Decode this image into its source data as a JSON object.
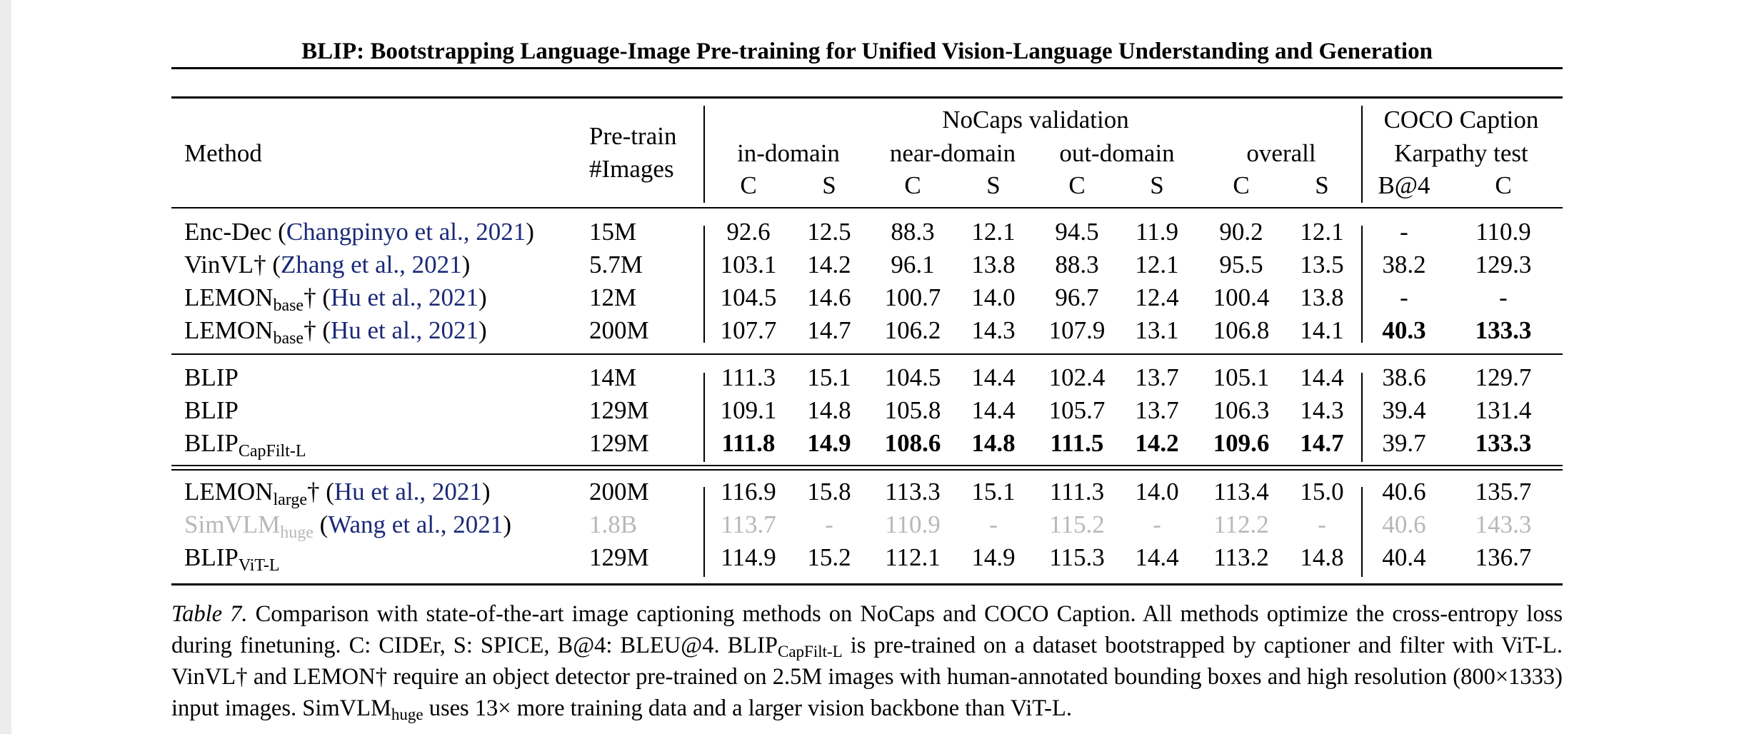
{
  "page_header": "BLIP: Bootstrapping Language-Image Pre-training for Unified Vision-Language Understanding and Generation",
  "table": {
    "header": {
      "method": "Method",
      "pretrain_line1": "Pre-train",
      "pretrain_line2": "#Images",
      "nocaps": "NoCaps validation",
      "coco_line1": "COCO Caption",
      "coco_line2": "Karpathy test",
      "groups": [
        "in-domain",
        "near-domain",
        "out-domain",
        "overall"
      ],
      "sub_c": "C",
      "sub_s": "S",
      "sub_b4": "B@4"
    },
    "rows": [
      {
        "m_main": "Enc-Dec (",
        "m_sub": "",
        "m_dagger": "",
        "m_cite": "Changpinyo et al., 2021",
        "m_close": ")",
        "pretrain": "15M",
        "vals": [
          "92.6",
          "12.5",
          "88.3",
          "12.1",
          "94.5",
          "11.9",
          "90.2",
          "12.1",
          "-",
          "110.9"
        ]
      },
      {
        "m_main": "VinVL",
        "m_sub": "",
        "m_dagger": "† (",
        "m_cite": "Zhang et al., 2021",
        "m_close": ")",
        "pretrain": "5.7M",
        "vals": [
          "103.1",
          "14.2",
          "96.1",
          "13.8",
          "88.3",
          "12.1",
          "95.5",
          "13.5",
          "38.2",
          "129.3"
        ]
      },
      {
        "m_main": "LEMON",
        "m_sub": "base",
        "m_dagger": "† (",
        "m_cite": "Hu et al., 2021",
        "m_close": ")",
        "pretrain": "12M",
        "vals": [
          "104.5",
          "14.6",
          "100.7",
          "14.0",
          "96.7",
          "12.4",
          "100.4",
          "13.8",
          "-",
          "-"
        ]
      },
      {
        "m_main": "LEMON",
        "m_sub": "base",
        "m_dagger": "† (",
        "m_cite": "Hu et al., 2021",
        "m_close": ")",
        "pretrain": "200M",
        "vals": [
          "107.7",
          "14.7",
          "106.2",
          "14.3",
          "107.9",
          "13.1",
          "106.8",
          "14.1",
          "40.3",
          "133.3"
        ]
      },
      {
        "m_main": "BLIP",
        "m_sub": "",
        "m_dagger": "",
        "m_cite": "",
        "m_close": "",
        "pretrain": "14M",
        "vals": [
          "111.3",
          "15.1",
          "104.5",
          "14.4",
          "102.4",
          "13.7",
          "105.1",
          "14.4",
          "38.6",
          "129.7"
        ]
      },
      {
        "m_main": "BLIP",
        "m_sub": "",
        "m_dagger": "",
        "m_cite": "",
        "m_close": "",
        "pretrain": "129M",
        "vals": [
          "109.1",
          "14.8",
          "105.8",
          "14.4",
          "105.7",
          "13.7",
          "106.3",
          "14.3",
          "39.4",
          "131.4"
        ]
      },
      {
        "m_main": "BLIP",
        "m_sub": "CapFilt-L",
        "m_dagger": "",
        "m_cite": "",
        "m_close": "",
        "pretrain": "129M",
        "vals": [
          "111.8",
          "14.9",
          "108.6",
          "14.8",
          "111.5",
          "14.2",
          "109.6",
          "14.7",
          "39.7",
          "133.3"
        ]
      },
      {
        "m_main": "LEMON",
        "m_sub": "large",
        "m_dagger": "† (",
        "m_cite": "Hu et al., 2021",
        "m_close": ")",
        "pretrain": "200M",
        "vals": [
          "116.9",
          "15.8",
          "113.3",
          "15.1",
          "111.3",
          "14.0",
          "113.4",
          "15.0",
          "40.6",
          "135.7"
        ]
      },
      {
        "m_main": "SimVLM",
        "m_sub": "huge",
        "m_dagger": " (",
        "m_cite": "Wang et al., 2021",
        "m_close": ")",
        "pretrain": "1.8B",
        "vals": [
          "113.7",
          "-",
          "110.9",
          "-",
          "115.2",
          "-",
          "112.2",
          "-",
          "40.6",
          "143.3"
        ]
      },
      {
        "m_main": "BLIP",
        "m_sub": "ViT-L",
        "m_dagger": "",
        "m_cite": "",
        "m_close": "",
        "pretrain": "129M",
        "vals": [
          "114.9",
          "15.2",
          "112.1",
          "14.9",
          "115.3",
          "14.4",
          "113.2",
          "14.8",
          "40.4",
          "136.7"
        ]
      }
    ]
  },
  "caption": {
    "label": "Table 7.",
    "p1": " Comparison with state-of-the-art image captioning methods on NoCaps and COCO Caption. All methods optimize the cross-entropy loss during finetuning. C: CIDEr, S: SPICE, B@4: BLEU@4. BLIP",
    "sub1": "CapFilt-L",
    "p2": " is pre-trained on a dataset bootstrapped by captioner and filter with ViT-L. VinVL† and LEMON† require an object detector pre-trained on 2.5M images with human-annotated bounding boxes and high resolution (800×1333) input images. SimVLM",
    "sub2": "huge",
    "p3": " uses 13× more training data and a larger vision backbone than ViT-L."
  }
}
